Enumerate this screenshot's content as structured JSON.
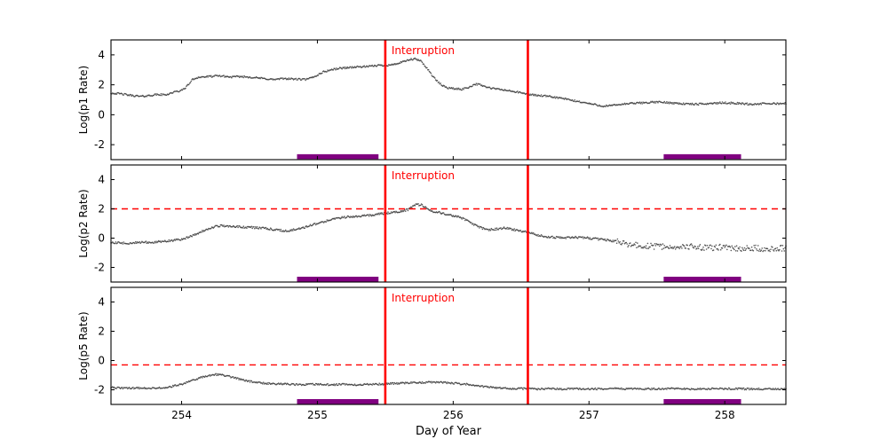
{
  "figure": {
    "background": "#ffffff"
  },
  "chart_data": {
    "type": "scatter",
    "xlabel": "Day of Year",
    "xlim": [
      253.48,
      258.45
    ],
    "xticks": [
      254,
      255,
      256,
      257,
      258
    ],
    "annotation": "Interruption",
    "annotation_color": "#ff0000",
    "vlines": [
      255.5,
      256.55
    ],
    "vline_color": "#ff0000",
    "dashed_color": "#ff0000",
    "marker_color": "#3a3a3a",
    "bar_color": "#800080",
    "bar_spans": [
      [
        254.85,
        255.45
      ],
      [
        257.55,
        258.12
      ]
    ],
    "bar_y": -2.8,
    "panels": [
      {
        "ylabel": "Log(p1 Rate)",
        "ylim": [
          -3,
          5
        ],
        "yticks": [
          -2,
          0,
          2,
          4
        ],
        "dashed_y": null,
        "noise": 0.06,
        "noise_after_x": null,
        "noise_after": null,
        "points": [
          [
            253.48,
            1.45
          ],
          [
            253.55,
            1.4
          ],
          [
            253.62,
            1.3
          ],
          [
            253.7,
            1.22
          ],
          [
            253.76,
            1.28
          ],
          [
            253.82,
            1.35
          ],
          [
            253.88,
            1.33
          ],
          [
            253.94,
            1.5
          ],
          [
            254.0,
            1.62
          ],
          [
            254.04,
            1.9
          ],
          [
            254.08,
            2.35
          ],
          [
            254.12,
            2.5
          ],
          [
            254.2,
            2.55
          ],
          [
            254.28,
            2.6
          ],
          [
            254.36,
            2.52
          ],
          [
            254.44,
            2.55
          ],
          [
            254.52,
            2.5
          ],
          [
            254.6,
            2.42
          ],
          [
            254.68,
            2.35
          ],
          [
            254.76,
            2.42
          ],
          [
            254.84,
            2.38
          ],
          [
            254.92,
            2.35
          ],
          [
            254.98,
            2.55
          ],
          [
            255.04,
            2.85
          ],
          [
            255.1,
            3.0
          ],
          [
            255.16,
            3.1
          ],
          [
            255.22,
            3.15
          ],
          [
            255.3,
            3.2
          ],
          [
            255.38,
            3.22
          ],
          [
            255.44,
            3.3
          ],
          [
            255.5,
            3.3
          ],
          [
            255.56,
            3.35
          ],
          [
            255.62,
            3.5
          ],
          [
            255.68,
            3.68
          ],
          [
            255.72,
            3.72
          ],
          [
            255.76,
            3.6
          ],
          [
            255.8,
            3.2
          ],
          [
            255.84,
            2.7
          ],
          [
            255.88,
            2.25
          ],
          [
            255.92,
            1.95
          ],
          [
            255.96,
            1.8
          ],
          [
            256.0,
            1.75
          ],
          [
            256.06,
            1.7
          ],
          [
            256.12,
            1.85
          ],
          [
            256.16,
            2.05
          ],
          [
            256.2,
            2.0
          ],
          [
            256.26,
            1.8
          ],
          [
            256.32,
            1.72
          ],
          [
            256.4,
            1.62
          ],
          [
            256.48,
            1.5
          ],
          [
            256.56,
            1.35
          ],
          [
            256.64,
            1.28
          ],
          [
            256.72,
            1.2
          ],
          [
            256.8,
            1.1
          ],
          [
            256.88,
            0.95
          ],
          [
            256.96,
            0.82
          ],
          [
            257.04,
            0.68
          ],
          [
            257.1,
            0.58
          ],
          [
            257.16,
            0.6
          ],
          [
            257.22,
            0.68
          ],
          [
            257.3,
            0.75
          ],
          [
            257.4,
            0.8
          ],
          [
            257.5,
            0.85
          ],
          [
            257.6,
            0.8
          ],
          [
            257.7,
            0.73
          ],
          [
            257.8,
            0.7
          ],
          [
            257.9,
            0.76
          ],
          [
            258.0,
            0.8
          ],
          [
            258.1,
            0.76
          ],
          [
            258.2,
            0.7
          ],
          [
            258.3,
            0.74
          ],
          [
            258.45,
            0.75
          ]
        ]
      },
      {
        "ylabel": "Log(p2 Rate)",
        "ylim": [
          -3,
          5
        ],
        "yticks": [
          -2,
          0,
          2,
          4
        ],
        "dashed_y": 2,
        "noise": 0.07,
        "noise_after_x": 257.2,
        "noise_after": 0.2,
        "points": [
          [
            253.48,
            -0.3
          ],
          [
            253.6,
            -0.35
          ],
          [
            253.7,
            -0.3
          ],
          [
            253.8,
            -0.27
          ],
          [
            253.9,
            -0.2
          ],
          [
            254.0,
            -0.08
          ],
          [
            254.08,
            0.15
          ],
          [
            254.16,
            0.5
          ],
          [
            254.24,
            0.78
          ],
          [
            254.3,
            0.85
          ],
          [
            254.38,
            0.8
          ],
          [
            254.46,
            0.75
          ],
          [
            254.54,
            0.72
          ],
          [
            254.62,
            0.68
          ],
          [
            254.7,
            0.55
          ],
          [
            254.78,
            0.5
          ],
          [
            254.86,
            0.62
          ],
          [
            254.94,
            0.85
          ],
          [
            255.0,
            1.0
          ],
          [
            255.08,
            1.2
          ],
          [
            255.16,
            1.38
          ],
          [
            255.24,
            1.47
          ],
          [
            255.32,
            1.5
          ],
          [
            255.4,
            1.58
          ],
          [
            255.48,
            1.68
          ],
          [
            255.56,
            1.75
          ],
          [
            255.62,
            1.8
          ],
          [
            255.68,
            2.0
          ],
          [
            255.72,
            2.25
          ],
          [
            255.76,
            2.3
          ],
          [
            255.8,
            2.1
          ],
          [
            255.84,
            1.85
          ],
          [
            255.9,
            1.75
          ],
          [
            255.96,
            1.62
          ],
          [
            256.02,
            1.5
          ],
          [
            256.08,
            1.3
          ],
          [
            256.14,
            1.0
          ],
          [
            256.2,
            0.72
          ],
          [
            256.26,
            0.58
          ],
          [
            256.32,
            0.62
          ],
          [
            256.38,
            0.7
          ],
          [
            256.44,
            0.58
          ],
          [
            256.5,
            0.48
          ],
          [
            256.56,
            0.38
          ],
          [
            256.62,
            0.22
          ],
          [
            256.7,
            0.08
          ],
          [
            256.8,
            0.02
          ],
          [
            256.9,
            0.06
          ],
          [
            257.0,
            0.0
          ],
          [
            257.1,
            -0.1
          ],
          [
            257.2,
            -0.22
          ],
          [
            257.3,
            -0.45
          ],
          [
            257.4,
            -0.52
          ],
          [
            257.5,
            -0.58
          ],
          [
            257.6,
            -0.6
          ],
          [
            257.7,
            -0.55
          ],
          [
            257.8,
            -0.62
          ],
          [
            257.9,
            -0.66
          ],
          [
            258.0,
            -0.6
          ],
          [
            258.1,
            -0.7
          ],
          [
            258.2,
            -0.66
          ],
          [
            258.3,
            -0.72
          ],
          [
            258.45,
            -0.68
          ]
        ]
      },
      {
        "ylabel": "Log(p5 Rate)",
        "ylim": [
          -3,
          5
        ],
        "yticks": [
          -2,
          0,
          2,
          4
        ],
        "dashed_y": -0.3,
        "noise": 0.06,
        "noise_after_x": null,
        "noise_after": null,
        "points": [
          [
            253.48,
            -1.85
          ],
          [
            253.6,
            -1.9
          ],
          [
            253.7,
            -1.87
          ],
          [
            253.8,
            -1.9
          ],
          [
            253.9,
            -1.82
          ],
          [
            254.0,
            -1.62
          ],
          [
            254.1,
            -1.3
          ],
          [
            254.18,
            -1.05
          ],
          [
            254.25,
            -0.95
          ],
          [
            254.32,
            -1.02
          ],
          [
            254.4,
            -1.2
          ],
          [
            254.5,
            -1.42
          ],
          [
            254.6,
            -1.55
          ],
          [
            254.7,
            -1.6
          ],
          [
            254.8,
            -1.62
          ],
          [
            254.9,
            -1.65
          ],
          [
            255.0,
            -1.62
          ],
          [
            255.1,
            -1.66
          ],
          [
            255.2,
            -1.62
          ],
          [
            255.3,
            -1.66
          ],
          [
            255.4,
            -1.62
          ],
          [
            255.5,
            -1.6
          ],
          [
            255.6,
            -1.56
          ],
          [
            255.7,
            -1.52
          ],
          [
            255.8,
            -1.5
          ],
          [
            255.9,
            -1.47
          ],
          [
            256.0,
            -1.55
          ],
          [
            256.1,
            -1.62
          ],
          [
            256.2,
            -1.75
          ],
          [
            256.3,
            -1.85
          ],
          [
            256.4,
            -1.9
          ],
          [
            256.5,
            -1.92
          ],
          [
            256.6,
            -1.95
          ],
          [
            256.7,
            -1.92
          ],
          [
            256.8,
            -1.95
          ],
          [
            256.9,
            -1.92
          ],
          [
            257.0,
            -1.95
          ],
          [
            257.2,
            -1.92
          ],
          [
            257.4,
            -1.95
          ],
          [
            257.6,
            -1.92
          ],
          [
            257.8,
            -1.95
          ],
          [
            258.0,
            -1.92
          ],
          [
            258.2,
            -1.95
          ],
          [
            258.45,
            -1.93
          ]
        ]
      }
    ]
  }
}
